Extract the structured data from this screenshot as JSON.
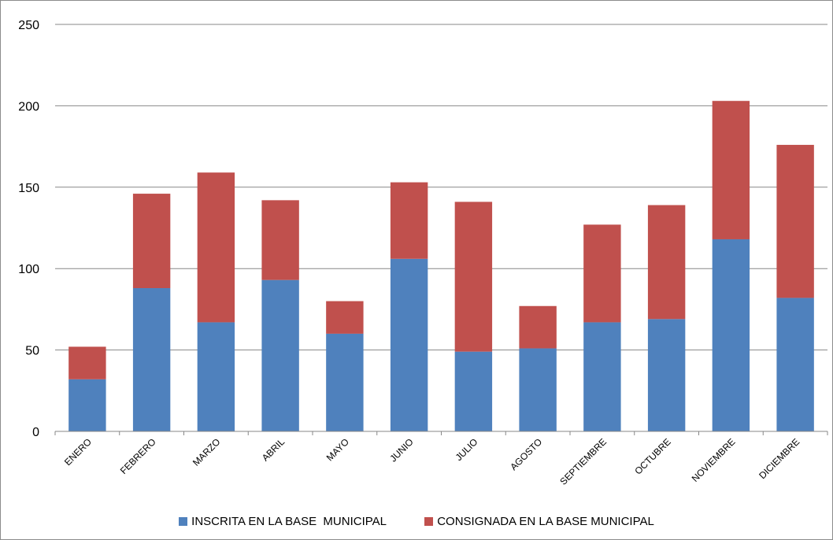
{
  "chart_data": {
    "type": "bar",
    "stacked": true,
    "categories": [
      "ENERO",
      "FEBRERO",
      "MARZO",
      "ABRIL",
      "MAYO",
      "JUNIO",
      "JULIO",
      "AGOSTO",
      "SEPTIEMBRE",
      "OCTUBRE",
      "NOVIEMBRE",
      "DICIEMBRE"
    ],
    "series": [
      {
        "name": "INSCRITA EN LA BASE  MUNICIPAL",
        "color": "#4f81bd",
        "values": [
          32,
          88,
          67,
          93,
          60,
          106,
          49,
          51,
          67,
          69,
          118,
          82
        ]
      },
      {
        "name": "CONSIGNADA EN LA BASE MUNICIPAL",
        "color": "#c0504d",
        "values": [
          20,
          58,
          92,
          49,
          20,
          47,
          92,
          26,
          60,
          70,
          85,
          94
        ]
      }
    ],
    "ylim": [
      0,
      250
    ],
    "yticks": [
      "0",
      "50",
      "100",
      "150",
      "200",
      "250"
    ],
    "grid": true,
    "legend": "bottom",
    "title": "",
    "xlabel": "",
    "ylabel": ""
  }
}
